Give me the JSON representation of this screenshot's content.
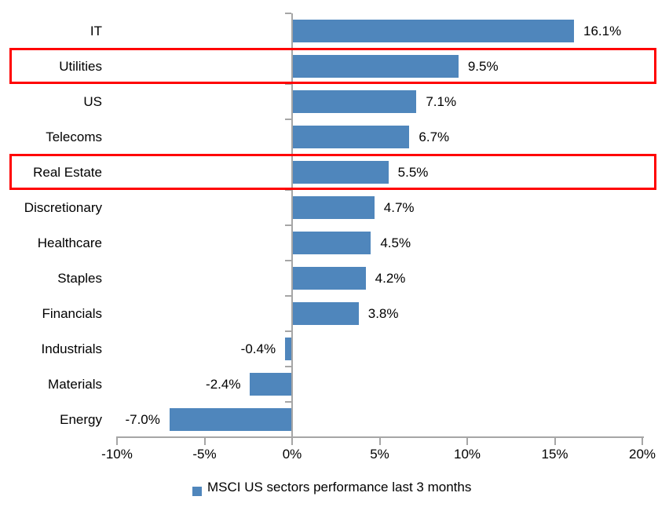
{
  "chart_data": {
    "type": "bar",
    "orientation": "horizontal",
    "title": "",
    "categories": [
      "IT",
      "Utilities",
      "US",
      "Telecoms",
      "Real Estate",
      "Discretionary",
      "Healthcare",
      "Staples",
      "Financials",
      "Industrials",
      "Materials",
      "Energy"
    ],
    "values": [
      16.1,
      9.5,
      7.1,
      6.7,
      5.5,
      4.7,
      4.5,
      4.2,
      3.8,
      -0.4,
      -2.4,
      -7.0
    ],
    "value_labels": [
      "16.1%",
      "9.5%",
      "7.1%",
      "6.7%",
      "5.5%",
      "4.7%",
      "4.5%",
      "4.2%",
      "3.8%",
      "-0.4%",
      "-2.4%",
      "-7.0%"
    ],
    "xlim": [
      -10,
      20
    ],
    "x_tick_values": [
      -10,
      -5,
      0,
      5,
      10,
      15,
      20
    ],
    "x_tick_labels": [
      "-10%",
      "-5%",
      "0%",
      "5%",
      "10%",
      "15%",
      "20%"
    ],
    "grid": false,
    "legend": "MSCI US sectors performance last 3 months",
    "legend_position": "bottom",
    "bar_color": "#4F86BC",
    "axis_color": "#A6A6A6",
    "highlight_color": "#FF0000",
    "highlighted_categories": [
      "Utilities",
      "Real Estate"
    ]
  }
}
